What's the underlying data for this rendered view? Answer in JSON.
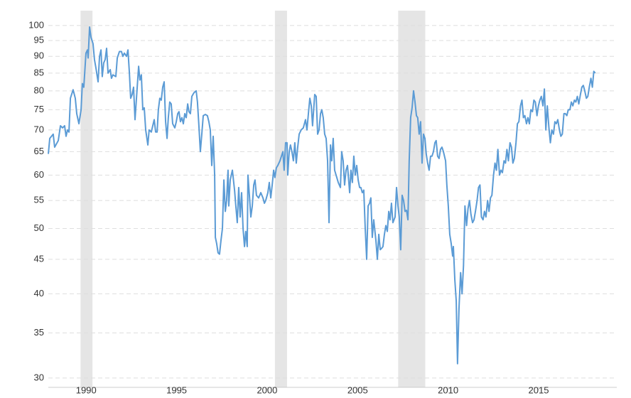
{
  "chart_data": {
    "type": "line",
    "color": "#5b9bd5",
    "log_scale_y": true,
    "grid": true,
    "xlim": [
      1987.91,
      2019.32
    ],
    "xticks": [
      1990,
      1995,
      2000,
      2005,
      2010,
      2015
    ],
    "ylim": [
      29.06,
      105.2
    ],
    "yticks": [
      30,
      35,
      40,
      45,
      50,
      55,
      60,
      65,
      70,
      75,
      80,
      85,
      90,
      95,
      100
    ],
    "shaded_ranges": [
      [
        1989.69,
        1990.35
      ],
      [
        2000.43,
        2001.1
      ],
      [
        2007.24,
        2008.74
      ]
    ],
    "shade_color": "#e5e5e5",
    "x": [
      1987.91,
      1987.99,
      1988.18,
      1988.26,
      1988.46,
      1988.58,
      1988.7,
      1988.81,
      1988.89,
      1988.97,
      1989.05,
      1989.13,
      1989.28,
      1989.4,
      1989.48,
      1989.6,
      1989.72,
      1989.79,
      1989.87,
      1989.99,
      1990.07,
      1990.11,
      1990.19,
      1990.27,
      1990.38,
      1990.46,
      1990.54,
      1990.66,
      1990.74,
      1990.82,
      1990.89,
      1990.97,
      1991.05,
      1991.13,
      1991.21,
      1991.33,
      1991.4,
      1991.48,
      1991.64,
      1991.72,
      1991.84,
      1991.95,
      1992.03,
      1992.11,
      1992.23,
      1992.31,
      1992.39,
      1992.46,
      1992.54,
      1992.62,
      1992.7,
      1992.78,
      1992.9,
      1992.97,
      1993.05,
      1993.13,
      1993.21,
      1993.29,
      1993.41,
      1993.48,
      1993.6,
      1993.68,
      1993.76,
      1993.84,
      1993.92,
      1993.99,
      1994.07,
      1994.15,
      1994.23,
      1994.31,
      1994.39,
      1994.47,
      1994.54,
      1994.62,
      1994.7,
      1994.78,
      1994.9,
      1994.98,
      1995.06,
      1995.13,
      1995.21,
      1995.29,
      1995.37,
      1995.45,
      1995.53,
      1995.61,
      1995.68,
      1995.76,
      1995.84,
      1995.96,
      1996.08,
      1996.15,
      1996.23,
      1996.31,
      1996.39,
      1996.47,
      1996.59,
      1996.7,
      1996.78,
      1996.86,
      1996.94,
      1997.02,
      1997.1,
      1997.14,
      1997.21,
      1997.29,
      1997.37,
      1997.45,
      1997.53,
      1997.61,
      1997.69,
      1997.76,
      1997.84,
      1997.88,
      1997.96,
      1998.08,
      1998.2,
      1998.27,
      1998.35,
      1998.43,
      1998.51,
      1998.59,
      1998.67,
      1998.75,
      1998.82,
      1998.9,
      1998.94,
      1999.02,
      1999.1,
      1999.18,
      1999.26,
      1999.33,
      1999.41,
      1999.53,
      1999.65,
      1999.77,
      1999.85,
      1999.92,
      2000.04,
      2000.12,
      2000.2,
      2000.28,
      2000.36,
      2000.43,
      2000.51,
      2000.59,
      2000.71,
      2000.79,
      2000.87,
      2000.94,
      2001.02,
      2001.1,
      2001.14,
      2001.22,
      2001.29,
      2001.37,
      2001.45,
      2001.53,
      2001.61,
      2001.69,
      2001.77,
      2001.88,
      2002.0,
      2002.12,
      2002.2,
      2002.28,
      2002.36,
      2002.44,
      2002.51,
      2002.63,
      2002.71,
      2002.79,
      2002.87,
      2002.95,
      2003.02,
      2003.1,
      2003.18,
      2003.26,
      2003.34,
      2003.42,
      2003.5,
      2003.57,
      2003.65,
      2003.73,
      2003.85,
      2003.93,
      2004.05,
      2004.12,
      2004.2,
      2004.28,
      2004.36,
      2004.44,
      2004.56,
      2004.63,
      2004.71,
      2004.79,
      2004.87,
      2004.95,
      2005.03,
      2005.11,
      2005.18,
      2005.26,
      2005.34,
      2005.42,
      2005.5,
      2005.58,
      2005.66,
      2005.73,
      2005.81,
      2005.89,
      2006.01,
      2006.09,
      2006.17,
      2006.25,
      2006.32,
      2006.4,
      2006.48,
      2006.56,
      2006.64,
      2006.72,
      2006.79,
      2006.87,
      2006.95,
      2007.07,
      2007.15,
      2007.23,
      2007.3,
      2007.38,
      2007.46,
      2007.54,
      2007.62,
      2007.7,
      2007.78,
      2007.85,
      2007.93,
      2008.01,
      2008.09,
      2008.17,
      2008.25,
      2008.32,
      2008.4,
      2008.48,
      2008.56,
      2008.64,
      2008.72,
      2008.79,
      2008.87,
      2008.95,
      2009.03,
      2009.11,
      2009.19,
      2009.27,
      2009.34,
      2009.42,
      2009.5,
      2009.58,
      2009.66,
      2009.74,
      2009.86,
      2009.93,
      2010.01,
      2010.09,
      2010.17,
      2010.25,
      2010.29,
      2010.37,
      2010.45,
      2010.52,
      2010.6,
      2010.69,
      2010.77,
      2010.85,
      2010.93,
      2011.02,
      2011.1,
      2011.18,
      2011.26,
      2011.35,
      2011.43,
      2011.51,
      2011.6,
      2011.68,
      2011.76,
      2011.84,
      2011.93,
      2012.01,
      2012.09,
      2012.18,
      2012.26,
      2012.34,
      2012.42,
      2012.51,
      2012.59,
      2012.67,
      2012.75,
      2012.84,
      2012.92,
      2013.0,
      2013.09,
      2013.17,
      2013.25,
      2013.33,
      2013.42,
      2013.5,
      2013.58,
      2013.66,
      2013.75,
      2013.83,
      2013.91,
      2014.0,
      2014.08,
      2014.16,
      2014.24,
      2014.33,
      2014.41,
      2014.49,
      2014.57,
      2014.66,
      2014.74,
      2014.82,
      2014.91,
      2014.99,
      2015.07,
      2015.15,
      2015.24,
      2015.32,
      2015.4,
      2015.48,
      2015.57,
      2015.65,
      2015.73,
      2015.82,
      2015.9,
      2015.98,
      2016.06,
      2016.15,
      2016.23,
      2016.31,
      2016.4,
      2016.48,
      2016.56,
      2016.64,
      2016.73,
      2016.81,
      2016.89,
      2016.98,
      2017.06,
      2017.14,
      2017.22,
      2017.31,
      2017.39,
      2017.47,
      2017.55,
      2017.64,
      2017.72,
      2017.8,
      2017.89,
      2017.97,
      2018.05,
      2018.13
    ],
    "values": [
      64.5,
      68,
      69,
      66,
      67.5,
      71,
      70.5,
      71,
      68.5,
      70,
      69.5,
      78,
      80.3,
      78,
      74,
      71.5,
      75,
      82,
      81,
      91,
      92,
      89.5,
      99.5,
      96,
      94,
      89,
      86.5,
      82.5,
      90,
      92,
      84,
      88,
      89,
      92.5,
      85,
      86,
      83.5,
      84.5,
      84,
      89.5,
      91.5,
      91.5,
      90,
      91,
      90,
      92,
      85,
      78,
      79,
      81,
      72.5,
      78,
      87,
      83,
      84.5,
      75,
      75.5,
      70,
      66.5,
      70,
      69.5,
      71,
      72.5,
      69.5,
      69.5,
      75,
      78,
      77.5,
      81,
      82.5,
      72,
      68,
      73,
      77,
      76.5,
      71.5,
      70.5,
      72,
      74,
      74.5,
      72,
      73,
      71.5,
      74,
      73,
      76.5,
      74.5,
      74,
      78.5,
      79.5,
      80,
      77,
      71,
      65,
      69,
      73.5,
      73.8,
      73.5,
      72,
      70,
      62,
      68.5,
      60,
      48.5,
      47.5,
      46,
      45.8,
      48,
      50,
      59,
      53,
      55,
      61,
      54,
      59,
      61,
      57,
      54,
      51,
      57.5,
      52,
      56.5,
      50,
      47,
      49.5,
      47,
      60,
      56,
      52,
      54,
      58,
      59,
      56,
      55.5,
      56.5,
      55.5,
      54.5,
      55,
      56.5,
      58.5,
      55.5,
      58,
      61,
      59.5,
      61.5,
      62,
      63,
      64,
      65,
      61,
      67,
      67,
      60,
      65,
      66.5,
      65,
      63,
      67,
      62.5,
      66,
      69,
      70,
      70.5,
      72.5,
      70,
      74,
      78,
      76,
      71,
      79,
      78.5,
      69,
      70,
      74,
      75,
      73,
      69,
      68,
      63,
      51,
      66.5,
      63,
      68,
      61,
      59.5,
      58.5,
      57.5,
      65,
      63,
      58,
      61,
      62,
      56.5,
      61,
      58.5,
      64,
      60,
      62,
      59,
      57.5,
      57.5,
      56.5,
      57,
      50,
      45,
      54,
      54.5,
      55.5,
      48.5,
      51.5,
      48,
      45,
      49,
      46.5,
      46.7,
      47,
      49,
      50.5,
      49.5,
      53,
      51.5,
      54.5,
      51,
      52,
      57.5,
      54,
      52,
      46.5,
      56,
      55,
      53,
      53.2,
      51.5,
      63,
      73,
      75.5,
      80,
      77,
      73.5,
      73,
      69,
      72,
      62.5,
      69,
      68,
      64.5,
      62.5,
      61,
      64,
      64,
      65,
      67,
      67.5,
      64,
      63.5,
      65.5,
      66,
      65,
      63,
      58,
      54,
      49,
      47.5,
      45.5,
      47,
      42,
      39,
      31.5,
      38,
      43,
      40,
      44,
      54,
      50.5,
      53.5,
      55,
      52.5,
      51,
      51.5,
      53,
      55,
      57.5,
      58,
      52,
      51.5,
      53,
      52,
      55,
      53,
      55.5,
      56,
      60,
      62.5,
      61,
      65.5,
      60,
      61,
      60.5,
      63,
      62.5,
      65.5,
      63,
      67,
      66,
      62.5,
      63.5,
      67,
      71.5,
      72,
      76,
      77.5,
      73,
      73.5,
      71.5,
      73,
      71.5,
      75,
      74.5,
      77.5,
      77,
      73.5,
      76,
      77.5,
      78.5,
      76,
      80.5,
      70,
      76,
      70.5,
      67,
      70,
      69,
      72,
      71.5,
      72.5,
      70,
      68.5,
      69,
      74,
      74,
      73.5,
      75,
      75,
      77,
      76,
      77.5,
      77,
      78.5,
      76.5,
      79,
      81,
      81.5,
      80,
      78,
      78.5,
      81,
      83.5,
      81,
      85.5,
      85
    ]
  }
}
